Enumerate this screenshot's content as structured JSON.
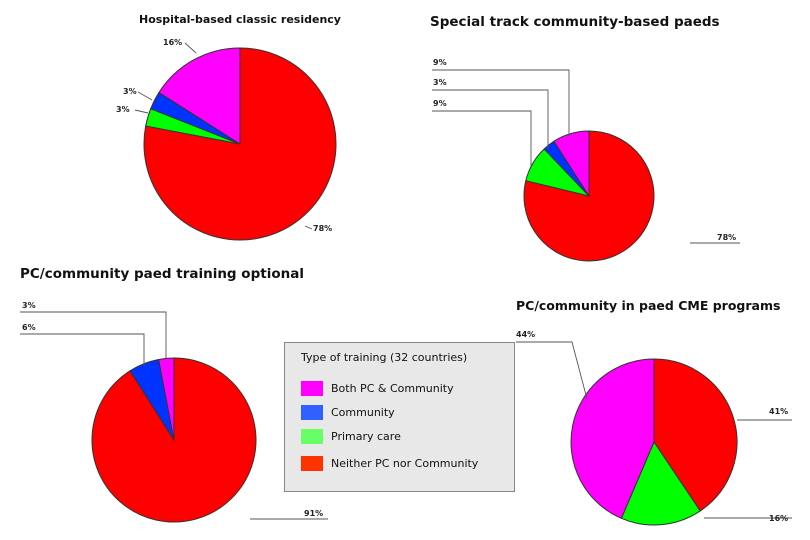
{
  "legend": {
    "title": "Type of training (32 countries)",
    "items": [
      {
        "label": "Both PC & Community",
        "color": "#ff00ff"
      },
      {
        "label": "Community",
        "color": "#3060ff"
      },
      {
        "label": "Primary care",
        "color": "#66ff66"
      },
      {
        "label": "Neither PC nor Community",
        "color": "#ff3300"
      }
    ]
  },
  "chart_data": [
    {
      "type": "pie",
      "title": "Hospital-based classic residency",
      "categories": [
        "Neither PC nor Community",
        "Primary care",
        "Community",
        "Both PC & Community"
      ],
      "values": [
        78,
        3,
        3,
        16
      ],
      "labels": [
        "78%",
        "3%",
        "3%",
        "16%"
      ],
      "colors": [
        "#ff0000",
        "#00ff00",
        "#0033ff",
        "#ff00ff"
      ]
    },
    {
      "type": "pie",
      "title": "Special track community-based paeds",
      "categories": [
        "Neither PC nor Community",
        "Primary care",
        "Community",
        "Both PC & Community"
      ],
      "values": [
        78,
        9,
        3,
        9
      ],
      "labels": [
        "78%",
        "9%",
        "3%",
        "9%"
      ],
      "colors": [
        "#ff0000",
        "#00ff00",
        "#0033ff",
        "#ff00ff"
      ]
    },
    {
      "type": "pie",
      "title": "PC/community paed training optional",
      "categories": [
        "Neither PC nor Community",
        "Community",
        "Both PC & Community"
      ],
      "values": [
        91,
        6,
        3
      ],
      "labels": [
        "91%",
        "6%",
        "3%"
      ],
      "colors": [
        "#ff0000",
        "#0033ff",
        "#ff00ff"
      ]
    },
    {
      "type": "pie",
      "title": "PC/community in paed CME programs",
      "categories": [
        "Neither PC nor Community",
        "Primary care",
        "Both PC & Community"
      ],
      "values": [
        41,
        16,
        44
      ],
      "labels": [
        "41%",
        "16%",
        "44%"
      ],
      "colors": [
        "#ff0000",
        "#00ff00",
        "#ff00ff"
      ]
    }
  ]
}
